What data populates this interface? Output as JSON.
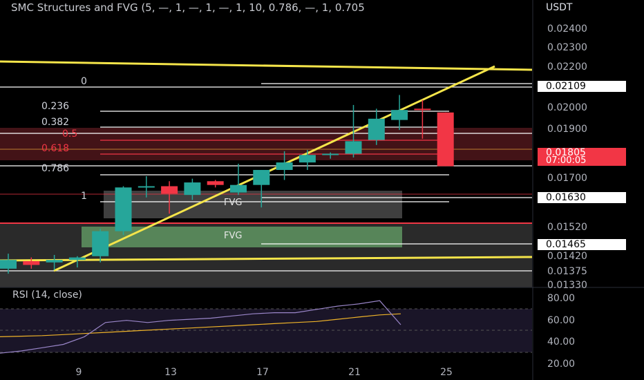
{
  "header": {
    "indicator_title": "SMC Structures and FVG (5, —, 1, —, 1, —, 1, 10, 0.786, —, 1, 0.705",
    "currency": "USDT"
  },
  "rsi": {
    "title": "RSI (14, close)",
    "ticks": [
      "80.00",
      "60.00",
      "40.00",
      "20.00"
    ]
  },
  "price_axis": {
    "ticks": [
      "0.02400",
      "0.02300",
      "0.02200",
      "0.02000",
      "0.01900",
      "0.01700",
      "0.01520",
      "0.01420",
      "0.01375",
      "0.01330"
    ],
    "labels": {
      "level_0": "0.02109",
      "current_price": "0.01805",
      "countdown": "07:00:05",
      "level_1": "0.01630",
      "fvg_low": "0.01465"
    }
  },
  "time_axis": {
    "ticks": [
      "9",
      "13",
      "17",
      "21",
      "25"
    ]
  },
  "fib_levels": {
    "f0": "0",
    "f236": "0.236",
    "f382": "0.382",
    "f5": "0.5",
    "f618": "0.618",
    "f786": "0.786",
    "f1": "1"
  },
  "zones": {
    "fvg_upper": "FVG",
    "fvg_lower": "FVG"
  },
  "colors": {
    "up": "#26a69a",
    "down": "#f23645",
    "trendline": "#f5e54a",
    "rsi_line": "#7e57c2",
    "rsi_ma": "#f0b429",
    "fvg_green": "#4caf50",
    "premium_zone": "#5a1a1e"
  },
  "chart_data": {
    "type": "candlestick",
    "x_ticks": [
      "9",
      "13",
      "17",
      "21",
      "25"
    ],
    "ylim": [
      0.0132,
      0.0247
    ],
    "candles": [
      {
        "o": 0.01395,
        "h": 0.01455,
        "l": 0.01375,
        "c": 0.0143
      },
      {
        "o": 0.01425,
        "h": 0.0144,
        "l": 0.01395,
        "c": 0.0141
      },
      {
        "o": 0.0142,
        "h": 0.0145,
        "l": 0.0139,
        "c": 0.0143
      },
      {
        "o": 0.0143,
        "h": 0.01445,
        "l": 0.014,
        "c": 0.0144
      },
      {
        "o": 0.01445,
        "h": 0.01555,
        "l": 0.0142,
        "c": 0.01545
      },
      {
        "o": 0.01545,
        "h": 0.01725,
        "l": 0.0153,
        "c": 0.0172
      },
      {
        "o": 0.0172,
        "h": 0.01765,
        "l": 0.0168,
        "c": 0.01725
      },
      {
        "o": 0.01725,
        "h": 0.01745,
        "l": 0.01615,
        "c": 0.01695
      },
      {
        "o": 0.0169,
        "h": 0.01755,
        "l": 0.0167,
        "c": 0.0174
      },
      {
        "o": 0.01745,
        "h": 0.0175,
        "l": 0.0172,
        "c": 0.0173
      },
      {
        "o": 0.017,
        "h": 0.01815,
        "l": 0.0169,
        "c": 0.0173
      },
      {
        "o": 0.0173,
        "h": 0.0179,
        "l": 0.0164,
        "c": 0.0179
      },
      {
        "o": 0.0179,
        "h": 0.01865,
        "l": 0.0175,
        "c": 0.0182
      },
      {
        "o": 0.0182,
        "h": 0.0187,
        "l": 0.0179,
        "c": 0.0185
      },
      {
        "o": 0.0185,
        "h": 0.0186,
        "l": 0.01835,
        "c": 0.01855
      },
      {
        "o": 0.01855,
        "h": 0.0205,
        "l": 0.0184,
        "c": 0.01905
      },
      {
        "o": 0.0191,
        "h": 0.02035,
        "l": 0.0189,
        "c": 0.01995
      },
      {
        "o": 0.0199,
        "h": 0.0209,
        "l": 0.0195,
        "c": 0.0203
      },
      {
        "o": 0.02035,
        "h": 0.0207,
        "l": 0.01915,
        "c": 0.0203
      },
      {
        "o": 0.0202,
        "h": 0.0202,
        "l": 0.01805,
        "c": 0.01805
      }
    ],
    "rsi_values": [
      30,
      32,
      35,
      38,
      45,
      58,
      60,
      58,
      60,
      61,
      62,
      64,
      66,
      67,
      67,
      70,
      73,
      75,
      78,
      56
    ],
    "rsi_ma_values": [
      45,
      45.5,
      46,
      47,
      48,
      49,
      50,
      51,
      52,
      53,
      54,
      55,
      56,
      57,
      58,
      59,
      61,
      63,
      65,
      66
    ],
    "rsi_ylim": [
      20,
      80
    ]
  }
}
